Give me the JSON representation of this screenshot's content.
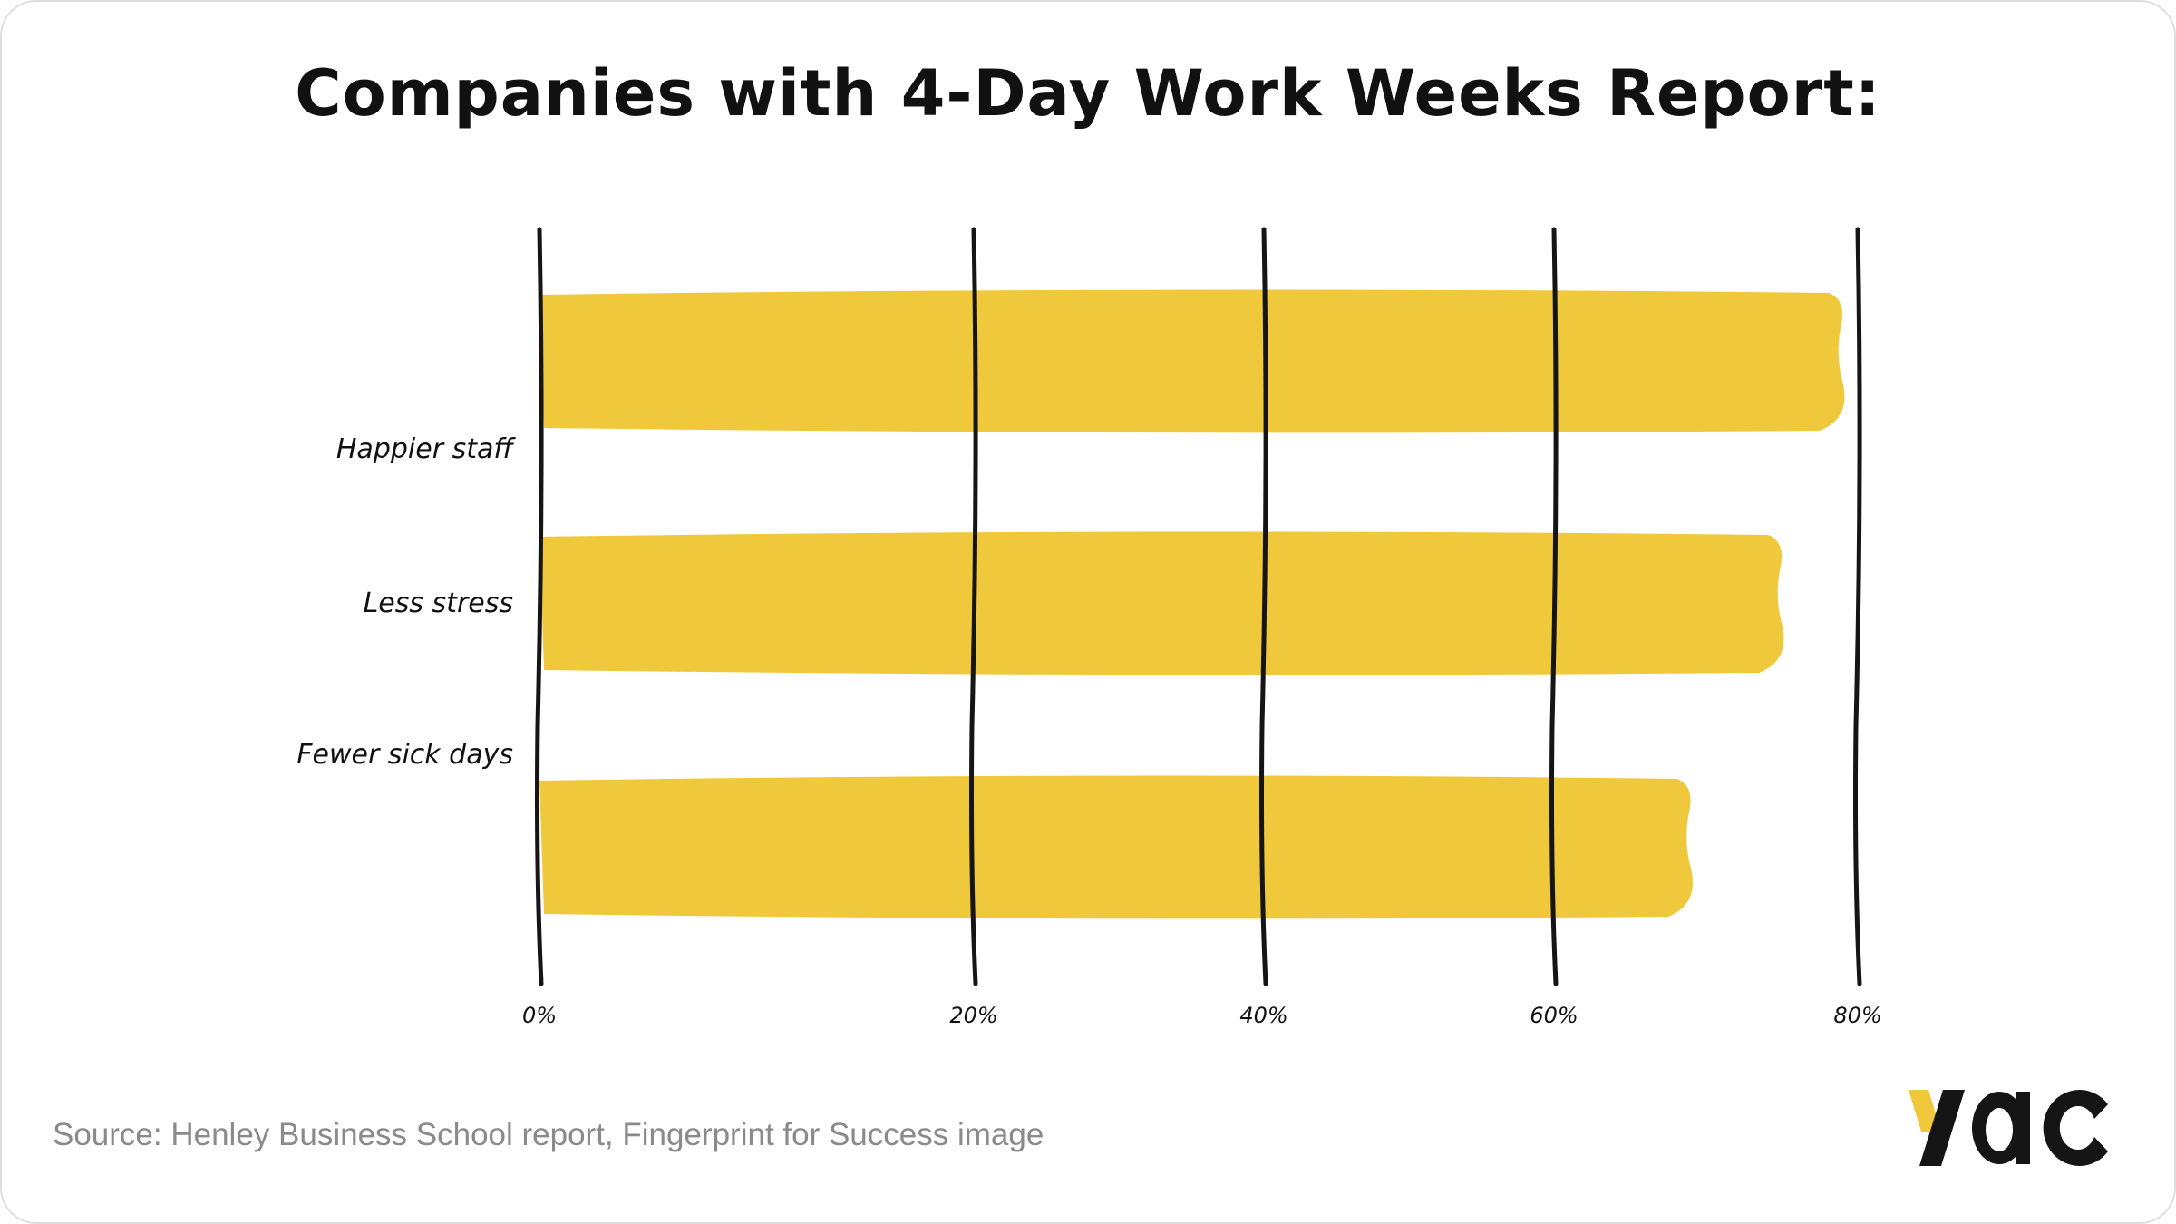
{
  "chart_data": {
    "type": "bar",
    "orientation": "horizontal",
    "title": "Companies with 4-Day Work Weeks Report:",
    "categories": [
      "Happier staff",
      "Less stress",
      "Fewer sick days"
    ],
    "values": [
      79,
      75,
      69
    ],
    "unit": "%",
    "xlim": [
      0,
      80
    ],
    "xticks": [
      0,
      20,
      40,
      60,
      80
    ],
    "xtick_labels": [
      "0%",
      "20%",
      "40%",
      "60%",
      "80%"
    ],
    "xlabel": "",
    "ylabel": "",
    "grid": true,
    "bar_color": "#F0C83C"
  },
  "footer": {
    "source": "Source: Henley Business School report, Fingerprint for Success image",
    "logo_text": "yac"
  },
  "colors": {
    "accent": "#F0C83C",
    "ink": "#151515",
    "muted": "#8a8a8a"
  }
}
